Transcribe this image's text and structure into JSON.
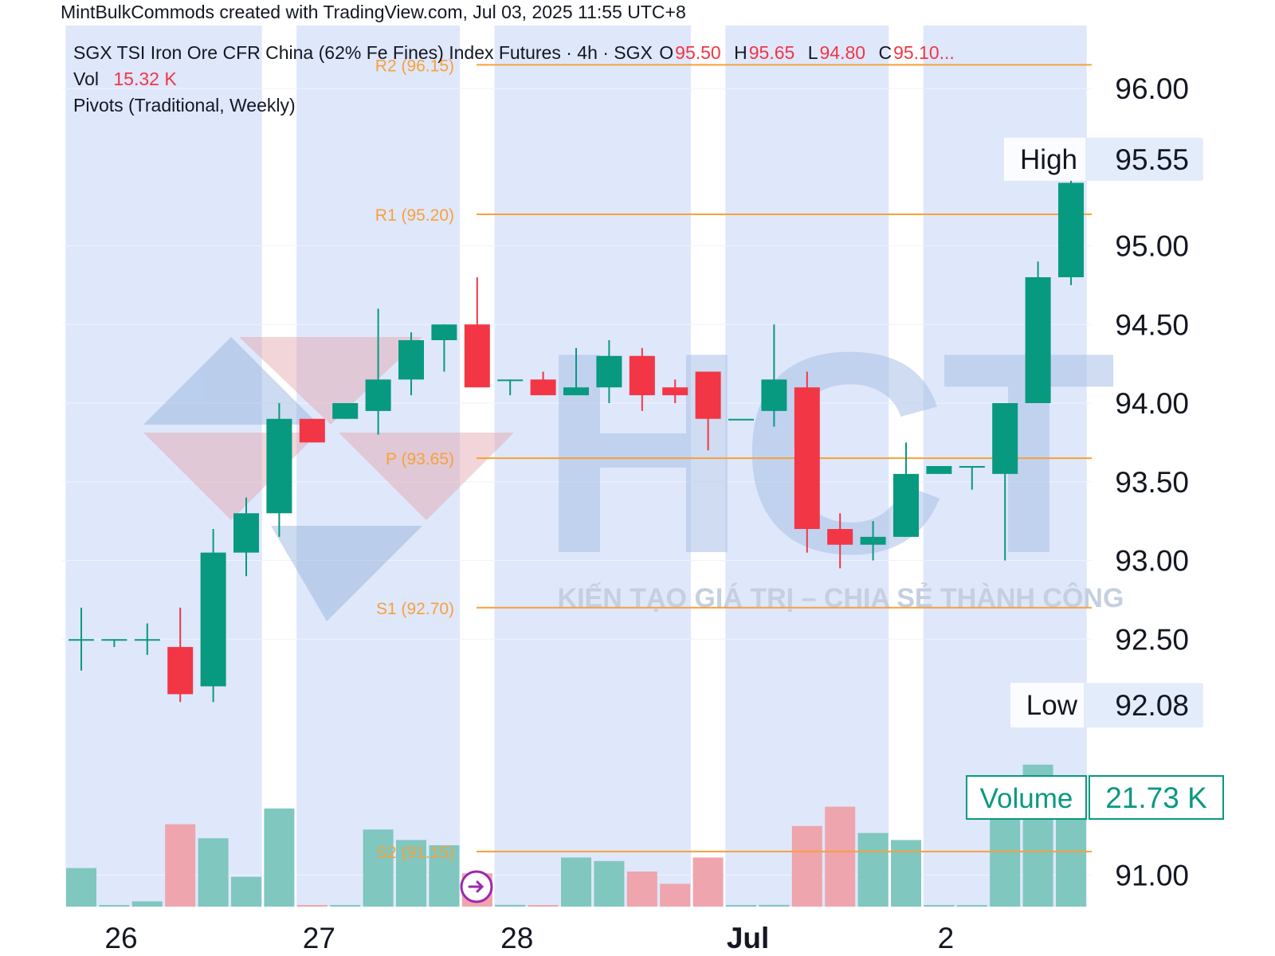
{
  "caption": "MintBulkCommods created with TradingView.com, Jul 03, 2025 11:55 UTC+8",
  "legend": {
    "title": "SGX TSI Iron Ore CFR China (62% Fe Fines) Index Futures · 4h · SGX",
    "o_label": "O",
    "o": "95.50",
    "h_label": "H",
    "h": "95.65",
    "l_label": "L",
    "l": "94.80",
    "c_label": "C",
    "c": "95.10...",
    "vol_label": "Vol",
    "vol": "15.32 K",
    "pivots_label": "Pivots (Traditional, Weekly)"
  },
  "watermark": {
    "brand": "HCT",
    "slogan": "KIẾN TẠO GIÁ TRỊ – CHIA SẺ THÀNH CÔNG"
  },
  "colors": {
    "up": "#089981",
    "down": "#f23645",
    "pivot": "#f7a13a",
    "session_band": "#dfe7fb",
    "vol_up": "#80c7bf",
    "vol_down": "#eea5ad"
  },
  "chart_data": {
    "type": "candlestick",
    "timeframe": "4h",
    "ylim": [
      90.8,
      96.4
    ],
    "y_ticks": [
      "96.00",
      "95.00",
      "94.50",
      "94.00",
      "93.50",
      "93.00",
      "92.50",
      "91.00"
    ],
    "x_ticks": [
      {
        "label": "26",
        "bar": 1.4
      },
      {
        "label": "27",
        "bar": 7.4
      },
      {
        "label": "28",
        "bar": 13.4
      },
      {
        "label": "Jul",
        "bar": 20.4
      },
      {
        "label": "2",
        "bar": 26.4
      }
    ],
    "pivots": [
      {
        "label": "R2 (96.15)",
        "value": 96.15
      },
      {
        "label": "R1 (95.20)",
        "value": 95.2
      },
      {
        "label": "P (93.65)",
        "value": 93.65
      },
      {
        "label": "S1 (92.70)",
        "value": 92.7
      },
      {
        "label": "S2 (91.15)",
        "value": 91.15
      }
    ],
    "candles": [
      {
        "o": 92.5,
        "h": 92.7,
        "l": 92.3,
        "c": 92.5,
        "v": 0.22
      },
      {
        "o": 92.5,
        "h": 92.5,
        "l": 92.45,
        "c": 92.5,
        "v": 0.0
      },
      {
        "o": 92.5,
        "h": 92.6,
        "l": 92.4,
        "c": 92.5,
        "v": 0.03
      },
      {
        "o": 92.45,
        "h": 92.7,
        "l": 92.1,
        "c": 92.15,
        "v": 0.47
      },
      {
        "o": 92.2,
        "h": 93.2,
        "l": 92.1,
        "c": 93.05,
        "v": 0.39
      },
      {
        "o": 93.05,
        "h": 93.4,
        "l": 92.9,
        "c": 93.3,
        "v": 0.17
      },
      {
        "o": 93.3,
        "h": 94.0,
        "l": 93.15,
        "c": 93.9,
        "v": 0.56
      },
      {
        "o": 93.9,
        "h": 93.9,
        "l": 93.75,
        "c": 93.75,
        "v": 0.0
      },
      {
        "o": 93.9,
        "h": 94.0,
        "l": 93.9,
        "c": 94.0,
        "v": 0.0
      },
      {
        "o": 93.95,
        "h": 94.6,
        "l": 93.8,
        "c": 94.15,
        "v": 0.44
      },
      {
        "o": 94.15,
        "h": 94.45,
        "l": 94.05,
        "c": 94.4,
        "v": 0.38
      },
      {
        "o": 94.4,
        "h": 94.5,
        "l": 94.2,
        "c": 94.5,
        "v": 0.35
      },
      {
        "o": 94.5,
        "h": 94.8,
        "l": 94.1,
        "c": 94.1,
        "v": 0.19
      },
      {
        "o": 94.15,
        "h": 94.15,
        "l": 94.05,
        "c": 94.15,
        "v": 0.01
      },
      {
        "o": 94.15,
        "h": 94.2,
        "l": 94.05,
        "c": 94.05,
        "v": 0.0
      },
      {
        "o": 94.05,
        "h": 94.35,
        "l": 94.05,
        "c": 94.1,
        "v": 0.28
      },
      {
        "o": 94.1,
        "h": 94.4,
        "l": 94.0,
        "c": 94.3,
        "v": 0.26
      },
      {
        "o": 94.3,
        "h": 94.35,
        "l": 93.95,
        "c": 94.05,
        "v": 0.2
      },
      {
        "o": 94.1,
        "h": 94.15,
        "l": 94.0,
        "c": 94.05,
        "v": 0.13
      },
      {
        "o": 94.2,
        "h": 94.2,
        "l": 93.7,
        "c": 93.9,
        "v": 0.28
      },
      {
        "o": 93.9,
        "h": 93.9,
        "l": 93.9,
        "c": 93.9,
        "v": 0.0
      },
      {
        "o": 93.95,
        "h": 94.5,
        "l": 93.85,
        "c": 94.15,
        "v": 0.01
      },
      {
        "o": 94.1,
        "h": 94.2,
        "l": 93.05,
        "c": 93.2,
        "v": 0.46
      },
      {
        "o": 93.2,
        "h": 93.3,
        "l": 92.95,
        "c": 93.1,
        "v": 0.57
      },
      {
        "o": 93.1,
        "h": 93.25,
        "l": 93.0,
        "c": 93.15,
        "v": 0.42
      },
      {
        "o": 93.15,
        "h": 93.75,
        "l": 93.15,
        "c": 93.55,
        "v": 0.38
      },
      {
        "o": 93.55,
        "h": 93.6,
        "l": 93.55,
        "c": 93.6,
        "v": 0.0
      },
      {
        "o": 93.6,
        "h": 93.6,
        "l": 93.45,
        "c": 93.6,
        "v": 0.0
      },
      {
        "o": 93.55,
        "h": 94.0,
        "l": 93.0,
        "c": 94.0,
        "v": 0.58
      },
      {
        "o": 94.0,
        "h": 94.9,
        "l": 94.0,
        "c": 94.8,
        "v": 0.81
      },
      {
        "o": 94.8,
        "h": 95.55,
        "l": 94.75,
        "c": 95.4,
        "v": 0.68
      }
    ],
    "price_labels": {
      "high_label": "High",
      "high": "95.55",
      "low_label": "Low",
      "low": "92.08",
      "volume_label": "Volume",
      "volume": "21.73 K"
    }
  }
}
